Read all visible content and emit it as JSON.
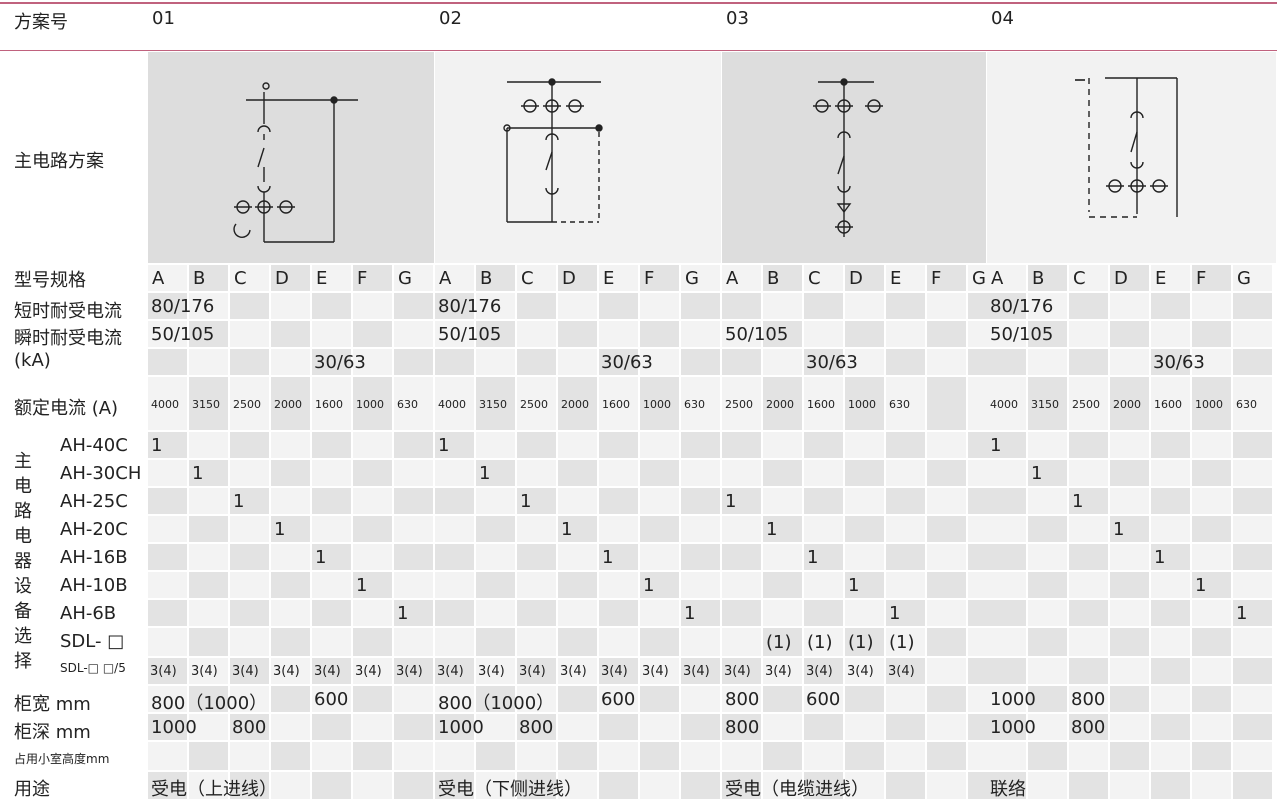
{
  "header": {
    "label": "方案号",
    "schemes": [
      "01",
      "02",
      "03",
      "04"
    ]
  },
  "row_labels": {
    "main_circuit": "主电路方案",
    "model": "型号规格",
    "short_time": "短时耐受电流",
    "peak": "瞬时耐受电流",
    "ka": "(kA)",
    "rated_current": "额定电流 (A)",
    "device_group": [
      "主",
      "电",
      "路",
      "电",
      "器",
      "设",
      "备",
      "选",
      "择"
    ],
    "devices": [
      "AH-40C",
      "AH-30CH",
      "AH-25C",
      "AH-20C",
      "AH-16B",
      "AH-10B",
      "AH-6B",
      "SDL- □",
      "SDL-□ □/5"
    ],
    "width": "柜宽 mm",
    "depth": "柜深 mm",
    "room_height": "占用小室高度mm",
    "usage": "用途"
  },
  "letters": [
    "A",
    "B",
    "C",
    "D",
    "E",
    "F",
    "G"
  ],
  "schemes": [
    {
      "short_time": "80/176",
      "peak": "50/105",
      "ka_extra": "30/63",
      "currents": [
        "4000",
        "3150",
        "2500",
        "2000",
        "1600",
        "1000",
        "630"
      ],
      "device_marks": [
        "1",
        "1",
        "1",
        "1",
        "1",
        "1",
        "1"
      ],
      "sdl": [
        "",
        "",
        "",
        "",
        "",
        "",
        ""
      ],
      "ct": [
        "3(4)",
        "3(4)",
        "3(4)",
        "3(4)",
        "3(4)",
        "3(4)",
        "3(4)"
      ],
      "width": [
        "800（1000）",
        "600"
      ],
      "depth": [
        "1000",
        "800"
      ],
      "usage": "受电（上进线）"
    },
    {
      "short_time": "80/176",
      "peak": "50/105",
      "ka_extra": "30/63",
      "currents": [
        "4000",
        "3150",
        "2500",
        "2000",
        "1600",
        "1000",
        "630"
      ],
      "device_marks": [
        "1",
        "1",
        "1",
        "1",
        "1",
        "1",
        "1"
      ],
      "sdl": [
        "",
        "",
        "",
        "",
        "",
        "",
        ""
      ],
      "ct": [
        "3(4)",
        "3(4)",
        "3(4)",
        "3(4)",
        "3(4)",
        "3(4)",
        "3(4)"
      ],
      "width": [
        "800（1000）",
        "600"
      ],
      "depth": [
        "1000",
        "800"
      ],
      "usage": "受电（下侧进线）"
    },
    {
      "short_time": "",
      "peak": "50/105",
      "ka_extra": "30/63",
      "currents": [
        "2500",
        "2000",
        "1600",
        "1000",
        "630"
      ],
      "device_marks": [
        "1",
        "1",
        "1",
        "1",
        "1"
      ],
      "sdl": [
        "(1)",
        "(1)",
        "(1)",
        "(1)"
      ],
      "ct": [
        "3(4)",
        "3(4)",
        "3(4)",
        "3(4)",
        "3(4)"
      ],
      "width": [
        "800",
        "600"
      ],
      "depth": [
        "800"
      ],
      "usage": "受电（电缆进线）"
    },
    {
      "short_time": "80/176",
      "peak": "50/105",
      "ka_extra": "30/63",
      "currents": [
        "4000",
        "3150",
        "2500",
        "2000",
        "1600",
        "1000",
        "630"
      ],
      "device_marks": [
        "1",
        "1",
        "1",
        "1",
        "1",
        "1",
        "1"
      ],
      "sdl": [],
      "ct": [],
      "width": [
        "1000",
        "800"
      ],
      "depth": [
        "1000",
        "800"
      ],
      "usage": "联络"
    }
  ],
  "colors": {
    "accent": "#c0627e",
    "grey_cell": "#e3e3e3",
    "light_cell": "#f3f3f3"
  }
}
